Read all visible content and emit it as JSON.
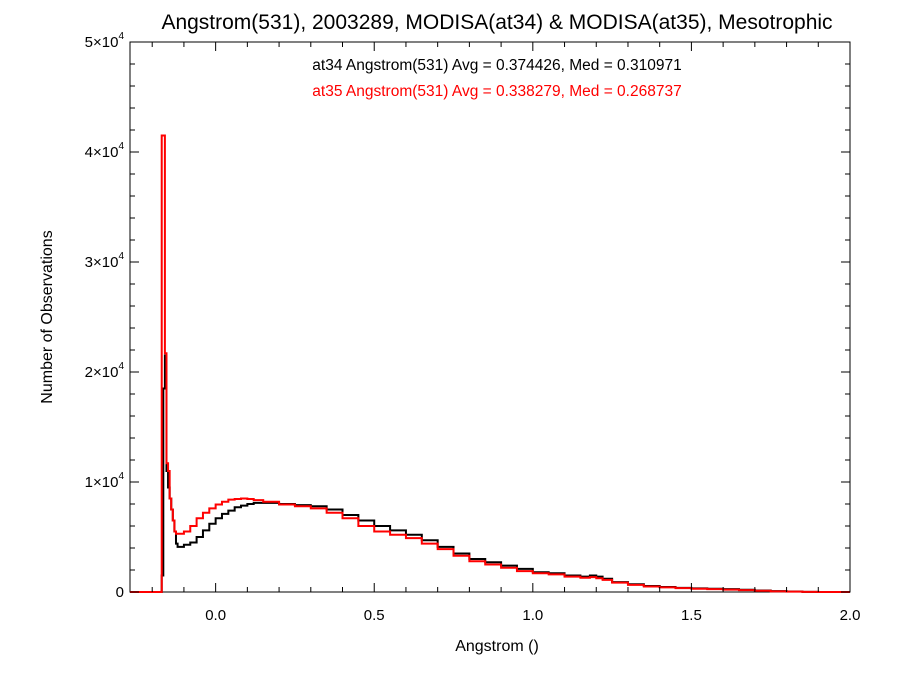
{
  "chart_data": {
    "type": "line",
    "title": "Angstrom(531), 2003289, MODISA(at34) & MODISA(at35), Mesotrophic",
    "xlabel": "Angstrom ()",
    "ylabel": "Number of Observations",
    "xlim": [
      -0.27,
      2.0
    ],
    "ylim": [
      0,
      50000
    ],
    "x_ticks": [
      {
        "value": 0.0,
        "label": "0.0"
      },
      {
        "value": 0.5,
        "label": "0.5"
      },
      {
        "value": 1.0,
        "label": "1.0"
      },
      {
        "value": 1.5,
        "label": "1.5"
      },
      {
        "value": 2.0,
        "label": "2.0"
      }
    ],
    "y_ticks": [
      {
        "value": 0,
        "mant": "0",
        "exp": ""
      },
      {
        "value": 10000,
        "mant": "1×10",
        "exp": "4"
      },
      {
        "value": 20000,
        "mant": "2×10",
        "exp": "4"
      },
      {
        "value": 30000,
        "mant": "3×10",
        "exp": "4"
      },
      {
        "value": 40000,
        "mant": "4×10",
        "exp": "4"
      },
      {
        "value": 50000,
        "mant": "5×10",
        "exp": "4"
      }
    ],
    "annotations": [
      "at34 Angstrom(531) Avg = 0.374426, Med = 0.310971",
      "at35 Angstrom(531) Avg = 0.338279, Med = 0.268737"
    ],
    "grid": false,
    "series": [
      {
        "color": "#000000",
        "points": [
          [
            -0.27,
            0
          ],
          [
            -0.18,
            0
          ],
          [
            -0.17,
            1500
          ],
          [
            -0.165,
            18500
          ],
          [
            -0.16,
            21500
          ],
          [
            -0.155,
            11000
          ],
          [
            -0.15,
            9500
          ],
          [
            -0.145,
            8500
          ],
          [
            -0.14,
            7500
          ],
          [
            -0.135,
            6500
          ],
          [
            -0.13,
            5500
          ],
          [
            -0.125,
            4400
          ],
          [
            -0.12,
            4100
          ],
          [
            -0.1,
            4300
          ],
          [
            -0.08,
            4500
          ],
          [
            -0.06,
            5000
          ],
          [
            -0.04,
            5600
          ],
          [
            -0.02,
            6200
          ],
          [
            0.0,
            6700
          ],
          [
            0.02,
            7100
          ],
          [
            0.04,
            7400
          ],
          [
            0.06,
            7700
          ],
          [
            0.08,
            7850
          ],
          [
            0.1,
            8000
          ],
          [
            0.12,
            8100
          ],
          [
            0.15,
            8100
          ],
          [
            0.2,
            8000
          ],
          [
            0.25,
            7900
          ],
          [
            0.3,
            7800
          ],
          [
            0.35,
            7500
          ],
          [
            0.4,
            7000
          ],
          [
            0.45,
            6500
          ],
          [
            0.5,
            6000
          ],
          [
            0.55,
            5600
          ],
          [
            0.6,
            5200
          ],
          [
            0.65,
            4700
          ],
          [
            0.7,
            4100
          ],
          [
            0.75,
            3500
          ],
          [
            0.8,
            3000
          ],
          [
            0.85,
            2700
          ],
          [
            0.9,
            2400
          ],
          [
            0.95,
            2100
          ],
          [
            1.0,
            1800
          ],
          [
            1.05,
            1700
          ],
          [
            1.1,
            1500
          ],
          [
            1.15,
            1400
          ],
          [
            1.18,
            1500
          ],
          [
            1.2,
            1400
          ],
          [
            1.22,
            1200
          ],
          [
            1.25,
            900
          ],
          [
            1.3,
            700
          ],
          [
            1.35,
            550
          ],
          [
            1.4,
            450
          ],
          [
            1.45,
            380
          ],
          [
            1.5,
            330
          ],
          [
            1.55,
            290
          ],
          [
            1.6,
            260
          ],
          [
            1.65,
            200
          ],
          [
            1.7,
            140
          ],
          [
            1.75,
            80
          ],
          [
            1.8,
            40
          ],
          [
            1.85,
            15
          ],
          [
            1.9,
            0
          ],
          [
            2.0,
            0
          ]
        ]
      },
      {
        "color": "#ff0000",
        "points": [
          [
            -0.27,
            0
          ],
          [
            -0.18,
            0
          ],
          [
            -0.175,
            0
          ],
          [
            -0.17,
            41500
          ],
          [
            -0.165,
            41500
          ],
          [
            -0.16,
            21700
          ],
          [
            -0.155,
            11700
          ],
          [
            -0.15,
            11000
          ],
          [
            -0.145,
            8500
          ],
          [
            -0.14,
            7500
          ],
          [
            -0.135,
            6500
          ],
          [
            -0.13,
            5500
          ],
          [
            -0.125,
            5300
          ],
          [
            -0.1,
            5500
          ],
          [
            -0.08,
            6000
          ],
          [
            -0.06,
            6700
          ],
          [
            -0.04,
            7200
          ],
          [
            -0.02,
            7600
          ],
          [
            0.0,
            7950
          ],
          [
            0.02,
            8200
          ],
          [
            0.04,
            8400
          ],
          [
            0.06,
            8450
          ],
          [
            0.08,
            8500
          ],
          [
            0.1,
            8450
          ],
          [
            0.12,
            8350
          ],
          [
            0.15,
            8200
          ],
          [
            0.2,
            7950
          ],
          [
            0.25,
            7800
          ],
          [
            0.3,
            7600
          ],
          [
            0.35,
            7200
          ],
          [
            0.4,
            6700
          ],
          [
            0.45,
            6000
          ],
          [
            0.5,
            5500
          ],
          [
            0.55,
            5200
          ],
          [
            0.6,
            4900
          ],
          [
            0.65,
            4400
          ],
          [
            0.7,
            3900
          ],
          [
            0.75,
            3300
          ],
          [
            0.8,
            2800
          ],
          [
            0.85,
            2500
          ],
          [
            0.9,
            2200
          ],
          [
            0.95,
            1900
          ],
          [
            1.0,
            1700
          ],
          [
            1.05,
            1600
          ],
          [
            1.1,
            1400
          ],
          [
            1.15,
            1300
          ],
          [
            1.18,
            1350
          ],
          [
            1.2,
            1250
          ],
          [
            1.22,
            1100
          ],
          [
            1.25,
            850
          ],
          [
            1.3,
            650
          ],
          [
            1.35,
            500
          ],
          [
            1.4,
            420
          ],
          [
            1.45,
            350
          ],
          [
            1.5,
            300
          ],
          [
            1.55,
            260
          ],
          [
            1.6,
            220
          ],
          [
            1.65,
            170
          ],
          [
            1.7,
            110
          ],
          [
            1.75,
            60
          ],
          [
            1.8,
            30
          ],
          [
            1.85,
            10
          ],
          [
            1.9,
            0
          ],
          [
            2.0,
            0
          ]
        ]
      }
    ]
  }
}
